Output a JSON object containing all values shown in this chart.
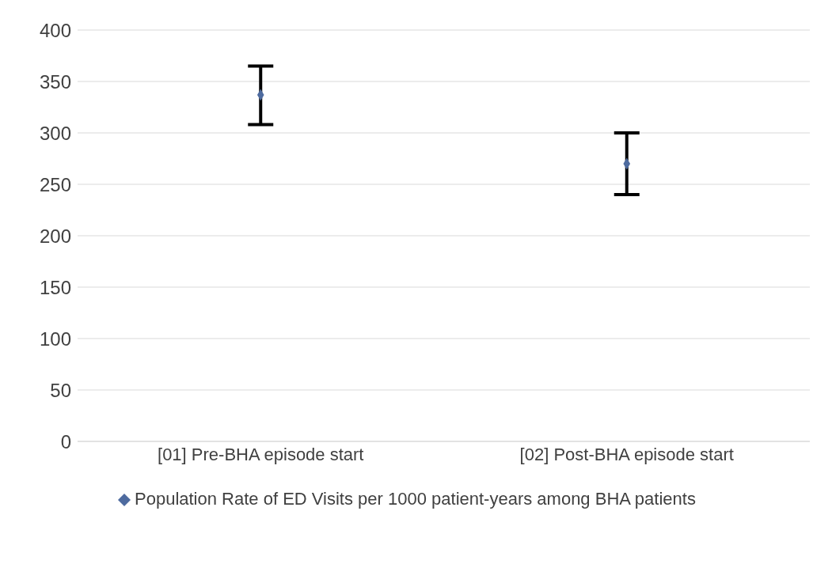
{
  "chart_data": {
    "type": "scatter",
    "categories": [
      "[01] Pre-BHA episode start",
      "[02] Post-BHA episode start"
    ],
    "series": [
      {
        "name": "Population Rate of ED Visits per 1000 patient-years among BHA patients",
        "color": "#4e6b9f",
        "values": [
          337,
          270
        ],
        "errors": [
          [
            308,
            365
          ],
          [
            240,
            300
          ]
        ]
      }
    ],
    "ylim": [
      0,
      400
    ],
    "yticks": [
      0,
      50,
      100,
      150,
      200,
      250,
      300,
      350,
      400
    ],
    "grid": "y",
    "legend": "bottom",
    "marker": "diamond"
  }
}
